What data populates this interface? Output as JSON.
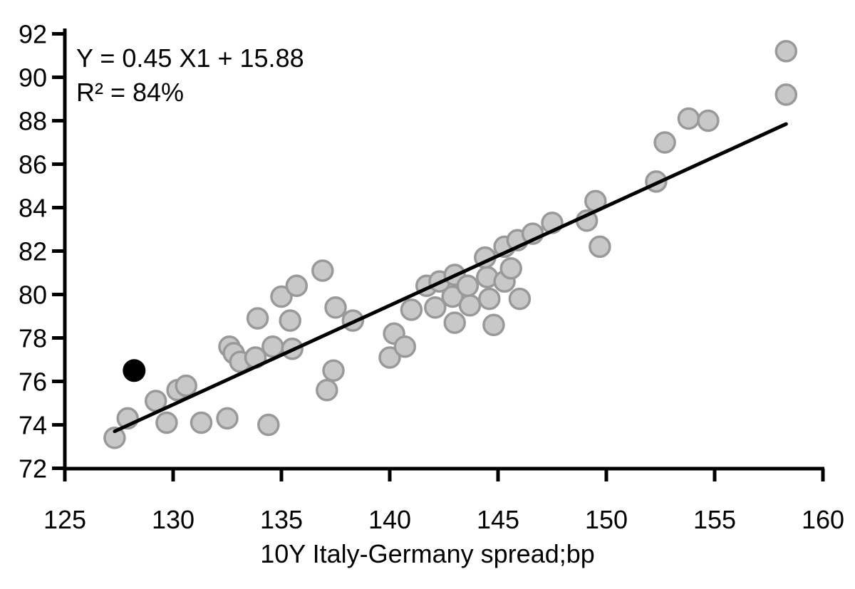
{
  "chart_data": {
    "type": "scatter",
    "title": "",
    "xlabel": "10Y Italy-Germany spread;bp",
    "ylabel": "",
    "xlim": [
      125,
      160
    ],
    "ylim": [
      72,
      92
    ],
    "x_ticks": [
      125,
      130,
      135,
      140,
      145,
      150,
      155,
      160
    ],
    "y_ticks": [
      72,
      74,
      76,
      78,
      80,
      82,
      84,
      86,
      88,
      90,
      92
    ],
    "grid": false,
    "legend": "none",
    "annotation": {
      "line1": "Y = 0.45 X1 + 15.88",
      "line2": "R² = 84%"
    },
    "series": [
      {
        "name": "observations",
        "marker": "circle",
        "fill": "#c8c8c8",
        "stroke": "#999999",
        "points": [
          [
            127.3,
            73.4
          ],
          [
            127.9,
            74.3
          ],
          [
            129.2,
            75.1
          ],
          [
            129.7,
            74.1
          ],
          [
            130.2,
            75.6
          ],
          [
            130.6,
            75.8
          ],
          [
            131.3,
            74.1
          ],
          [
            132.5,
            74.3
          ],
          [
            134.4,
            74.0
          ],
          [
            132.6,
            77.6
          ],
          [
            132.8,
            77.3
          ],
          [
            133.1,
            76.9
          ],
          [
            133.8,
            77.1
          ],
          [
            134.6,
            77.6
          ],
          [
            135.5,
            77.5
          ],
          [
            133.9,
            78.9
          ],
          [
            135.4,
            78.8
          ],
          [
            135.0,
            79.9
          ],
          [
            135.7,
            80.4
          ],
          [
            136.9,
            81.1
          ],
          [
            137.5,
            79.4
          ],
          [
            138.3,
            78.8
          ],
          [
            137.4,
            76.5
          ],
          [
            137.1,
            75.6
          ],
          [
            140.0,
            77.1
          ],
          [
            140.2,
            78.2
          ],
          [
            140.7,
            77.6
          ],
          [
            141.0,
            79.3
          ],
          [
            142.1,
            79.4
          ],
          [
            142.9,
            79.9
          ],
          [
            143.0,
            78.7
          ],
          [
            143.7,
            79.5
          ],
          [
            144.6,
            79.8
          ],
          [
            144.8,
            78.6
          ],
          [
            146.0,
            79.8
          ],
          [
            141.7,
            80.4
          ],
          [
            142.3,
            80.6
          ],
          [
            143.0,
            80.9
          ],
          [
            143.6,
            80.4
          ],
          [
            144.5,
            80.8
          ],
          [
            145.3,
            80.6
          ],
          [
            145.6,
            81.2
          ],
          [
            144.4,
            81.7
          ],
          [
            145.3,
            82.2
          ],
          [
            145.9,
            82.5
          ],
          [
            146.6,
            82.8
          ],
          [
            147.5,
            83.3
          ],
          [
            149.1,
            83.4
          ],
          [
            149.5,
            84.3
          ],
          [
            149.7,
            82.2
          ],
          [
            152.3,
            85.2
          ],
          [
            152.7,
            87.0
          ],
          [
            153.8,
            88.1
          ],
          [
            154.7,
            88.0
          ],
          [
            158.3,
            91.2
          ],
          [
            158.3,
            89.2
          ]
        ]
      },
      {
        "name": "highlighted-observation",
        "marker": "circle",
        "fill": "#000000",
        "stroke": "#000000",
        "points": [
          [
            128.2,
            76.5
          ]
        ]
      }
    ],
    "regression_line": {
      "x1": 127.3,
      "y1": 73.7,
      "x2": 158.3,
      "y2": 87.85,
      "color": "#000000"
    }
  },
  "colors": {
    "background": "#ffffff",
    "axis": "#000000",
    "point_fill": "#c8c8c8",
    "point_stroke": "#999999",
    "highlight_point": "#000000",
    "trend_line": "#000000"
  }
}
